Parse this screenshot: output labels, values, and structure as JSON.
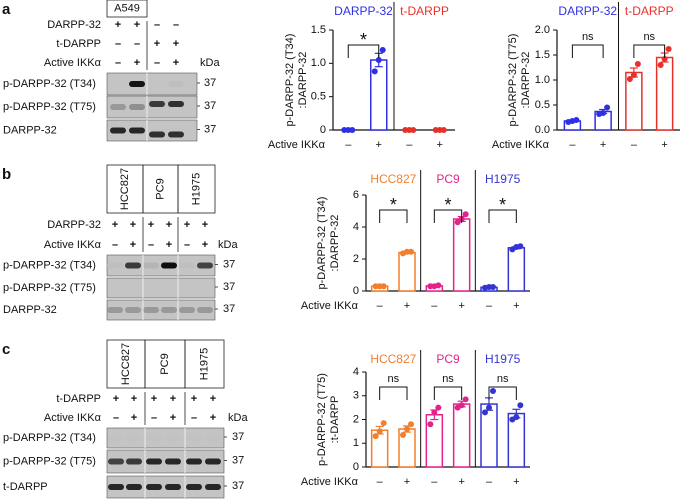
{
  "blots": [
    {
      "letter": "a",
      "cell_lines": [
        "A549"
      ],
      "rows": [
        {
          "name": "DARPP-32",
          "signs": [
            "+",
            "+",
            "–",
            "–"
          ]
        },
        {
          "name": "t-DARPP",
          "signs": [
            "–",
            "–",
            "+",
            "+"
          ]
        },
        {
          "name": "Active IKKα",
          "signs": [
            "–",
            "+",
            "–",
            "+"
          ]
        }
      ],
      "kda": "kDa",
      "bands": [
        {
          "name": "p-DARPP-32 (T34)",
          "mw": "37"
        },
        {
          "name": "p-DARPP-32 (T75)",
          "mw": "37"
        },
        {
          "name": "DARPP-32",
          "mw": "37"
        }
      ]
    },
    {
      "letter": "b",
      "cell_lines": [
        "HCC827",
        "PC9",
        "H1975"
      ],
      "rows": [
        {
          "name": "DARPP-32",
          "signs": [
            "+",
            "+",
            "+",
            "+",
            "+",
            "+"
          ]
        },
        {
          "name": "Active IKKα",
          "signs": [
            "–",
            "+",
            "–",
            "+",
            "–",
            "+"
          ]
        }
      ],
      "kda": "kDa",
      "bands": [
        {
          "name": "p-DARPP-32 (T34)",
          "mw": "37"
        },
        {
          "name": "p-DARPP-32 (T75)",
          "mw": "37"
        },
        {
          "name": "DARPP-32",
          "mw": "37"
        }
      ]
    },
    {
      "letter": "c",
      "cell_lines": [
        "HCC827",
        "PC9",
        "H1975"
      ],
      "rows": [
        {
          "name": "t-DARPP",
          "signs": [
            "+",
            "+",
            "+",
            "+",
            "+",
            "+"
          ]
        },
        {
          "name": "Active IKKα",
          "signs": [
            "–",
            "+",
            "–",
            "+",
            "–",
            "+"
          ]
        }
      ],
      "kda": "kDa",
      "bands": [
        {
          "name": "p-DARPP-32 (T34)",
          "mw": "37"
        },
        {
          "name": "p-DARPP-32 (T75)",
          "mw": "37"
        },
        {
          "name": "t-DARPP",
          "mw": "37"
        }
      ]
    }
  ],
  "chart_data": [
    {
      "type": "bar",
      "ylabel": [
        "p-DARPP-32 (T34)",
        ":DARPP-32"
      ],
      "xlabel": "Active IKKα",
      "categories": [
        "–",
        "+"
      ],
      "ylim": [
        0,
        1.5
      ],
      "yticks": [
        0,
        0.5,
        {
          "value": 1,
          "label": "1.0"
        },
        1.5
      ],
      "series": [
        {
          "name": "DARPP-32",
          "color": "#2f2fe6",
          "values": [
            0,
            1.05
          ],
          "errors": [
            0,
            0.1
          ],
          "points": [
            [
              0,
              0,
              0
            ],
            [
              0.88,
              1.05,
              1.2
            ]
          ],
          "annotation": "*"
        },
        {
          "name": "t-DARPP",
          "color": "#e8302a",
          "values": [
            0,
            0
          ],
          "errors": [
            0,
            0
          ],
          "points": [
            [
              0,
              0,
              0
            ],
            [
              0,
              0,
              0
            ]
          ]
        }
      ]
    },
    {
      "type": "bar",
      "ylabel": [
        "p-DARPP-32 (T75)",
        ":DARPP-32"
      ],
      "xlabel": "Active IKKα",
      "categories": [
        "–",
        "+"
      ],
      "ylim": [
        0,
        2
      ],
      "yticks": [
        {
          "value": 0,
          "label": "0.0"
        },
        0.5,
        {
          "value": 1,
          "label": "1.0"
        },
        1.5,
        {
          "value": 2,
          "label": "2.0"
        }
      ],
      "series": [
        {
          "name": "DARPP-32",
          "color": "#2f2fe6",
          "values": [
            0.18,
            0.37
          ],
          "errors": [
            0.02,
            0.04
          ],
          "points": [
            [
              0.16,
              0.18,
              0.2
            ],
            [
              0.32,
              0.34,
              0.45
            ]
          ],
          "annotation": "ns"
        },
        {
          "name": "t-DARPP",
          "color": "#e8302a",
          "values": [
            1.15,
            1.45
          ],
          "errors": [
            0.09,
            0.09
          ],
          "points": [
            [
              1.02,
              1.1,
              1.32
            ],
            [
              1.3,
              1.42,
              1.62
            ]
          ],
          "annotation": "ns"
        }
      ]
    },
    {
      "type": "bar",
      "ylabel": [
        "p-DARPP-32 (T34)",
        ":DARPP-32"
      ],
      "xlabel": "Active IKKα",
      "categories": [
        "–",
        "+"
      ],
      "ylim": [
        0,
        6
      ],
      "yticks": [
        0,
        2,
        4,
        6
      ],
      "series": [
        {
          "name": "HCC827",
          "color": "#f07f2e",
          "values": [
            0.3,
            2.4
          ],
          "errors": [
            0.02,
            0.05
          ],
          "points": [
            [
              0.3,
              0.3,
              0.3
            ],
            [
              2.35,
              2.45,
              2.45
            ]
          ],
          "annotation": "*"
        },
        {
          "name": "PC9",
          "color": "#e2248a",
          "values": [
            0.32,
            4.5
          ],
          "errors": [
            0.02,
            0.15
          ],
          "points": [
            [
              0.3,
              0.3,
              0.35
            ],
            [
              4.3,
              4.5,
              4.8
            ]
          ],
          "annotation": "*"
        },
        {
          "name": "H1975",
          "color": "#3434d2",
          "values": [
            0.23,
            2.7
          ],
          "errors": [
            0.02,
            0.06
          ],
          "points": [
            [
              0.2,
              0.25,
              0.25
            ],
            [
              2.6,
              2.75,
              2.8
            ]
          ],
          "annotation": "*"
        }
      ]
    },
    {
      "type": "bar",
      "ylabel": [
        "p-DARPP-32 (T75)",
        ":t-DARPP"
      ],
      "xlabel": "Active IKKα",
      "categories": [
        "–",
        "+"
      ],
      "ylim": [
        0,
        4
      ],
      "yticks": [
        0,
        1,
        2,
        3,
        4
      ],
      "series": [
        {
          "name": "HCC827",
          "color": "#f07f2e",
          "values": [
            1.55,
            1.6
          ],
          "errors": [
            0.16,
            0.13
          ],
          "points": [
            [
              1.3,
              1.5,
              1.85
            ],
            [
              1.35,
              1.6,
              1.8
            ]
          ],
          "annotation": "ns"
        },
        {
          "name": "PC9",
          "color": "#e2248a",
          "values": [
            2.2,
            2.65
          ],
          "errors": [
            0.2,
            0.12
          ],
          "points": [
            [
              1.8,
              2.3,
              2.5
            ],
            [
              2.5,
              2.6,
              2.85
            ]
          ],
          "annotation": "ns"
        },
        {
          "name": "H1975",
          "color": "#3434d2",
          "values": [
            2.65,
            2.25
          ],
          "errors": [
            0.26,
            0.18
          ],
          "points": [
            [
              2.3,
              2.5,
              3.2
            ],
            [
              2.0,
              2.1,
              2.6
            ]
          ],
          "annotation": "ns"
        }
      ]
    }
  ]
}
